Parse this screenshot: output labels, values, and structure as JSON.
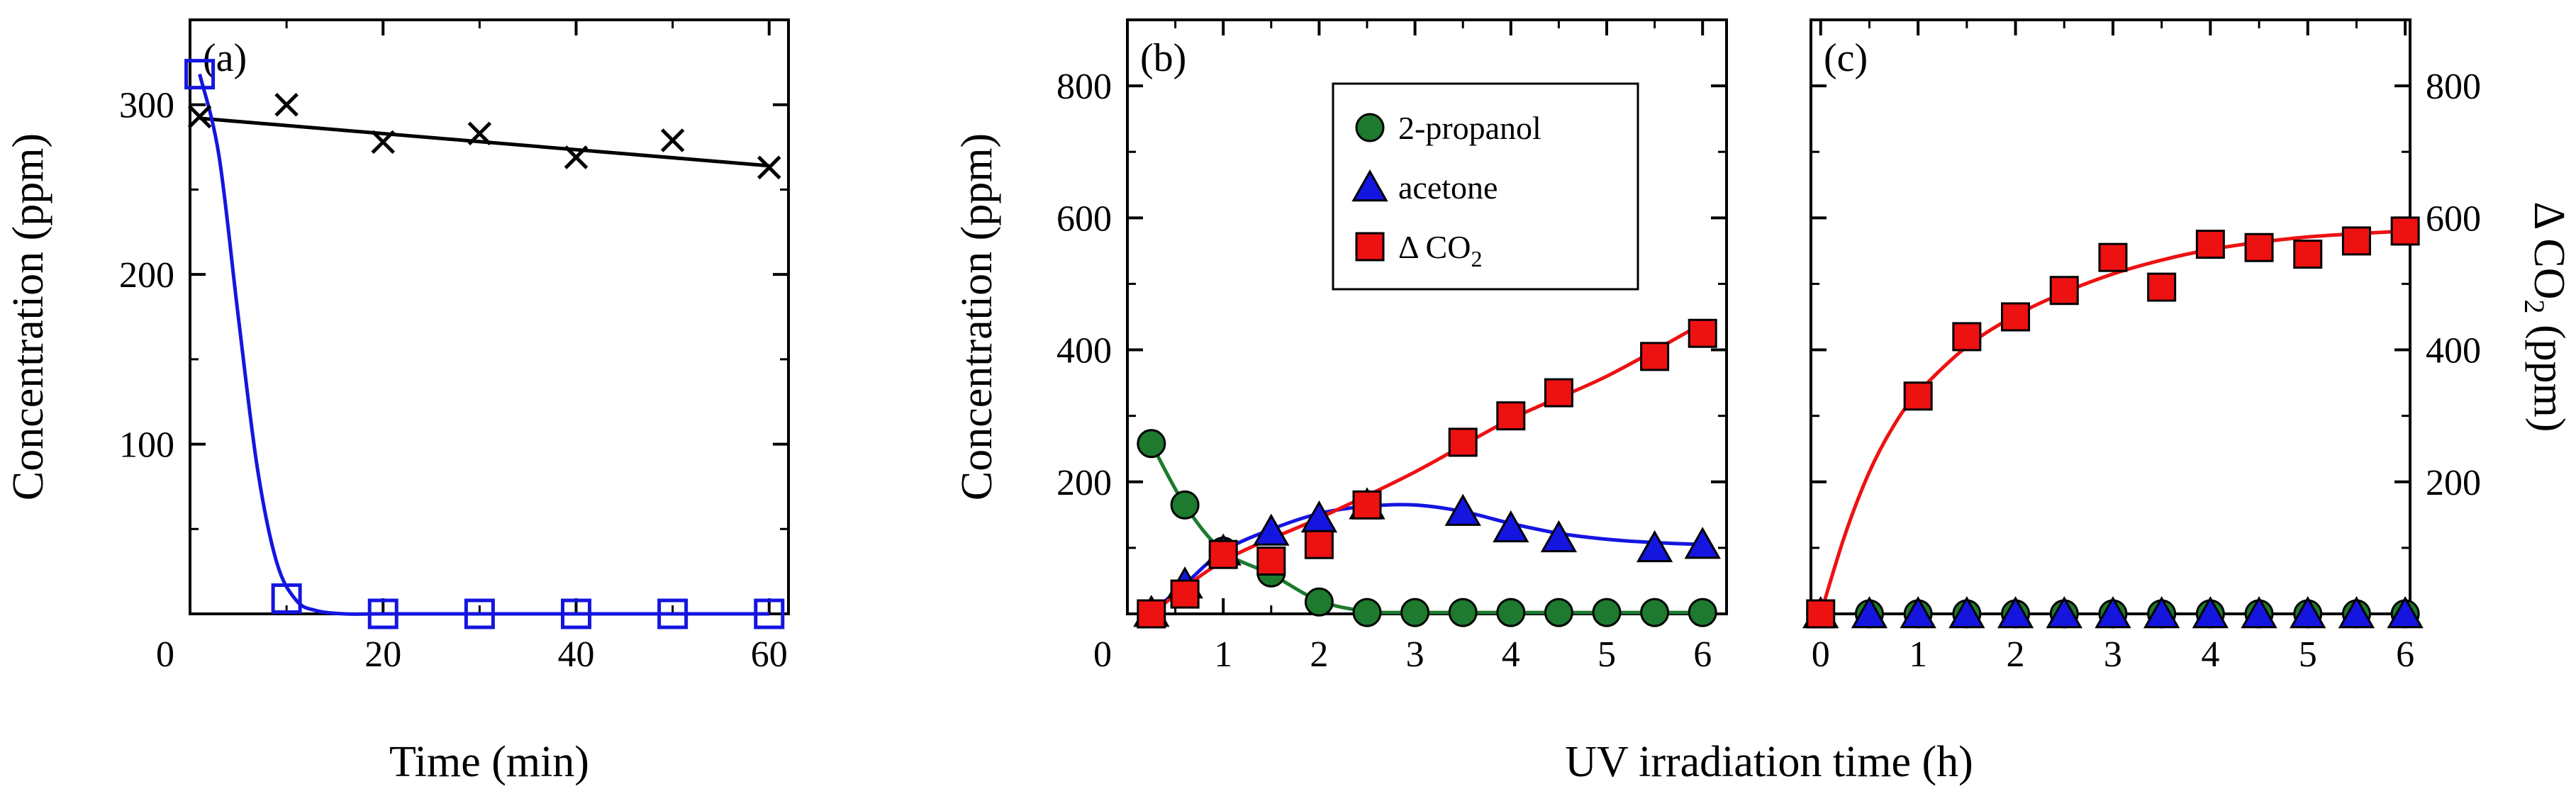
{
  "colors": {
    "axis": "#000000",
    "blue": "#1515e0",
    "red": "#ee1111",
    "green": "#1d7a2e",
    "black": "#000000"
  },
  "chart_data": [
    {
      "type": "scatter",
      "panel_label": "(a)",
      "xlabel": "Time (min)",
      "ylabel": "Concentration (ppm)",
      "xlim": [
        0,
        62
      ],
      "ylim": [
        0,
        350
      ],
      "xticks": [
        20,
        40,
        60
      ],
      "xtick_labels": [
        "20",
        "40",
        "60"
      ],
      "yticks": [
        100,
        200,
        300
      ],
      "ytick_labels": [
        "100",
        "200",
        "300"
      ],
      "origin_label": "0",
      "series": [
        {
          "name": "cross markers",
          "marker": "x",
          "color": "#000000",
          "points": [
            [
              1,
              293
            ],
            [
              10,
              300
            ],
            [
              20,
              278
            ],
            [
              30,
              283
            ],
            [
              40,
              269
            ],
            [
              50,
              279
            ],
            [
              60,
              263
            ]
          ],
          "fit": {
            "type": "linear",
            "x": [
              1,
              60
            ],
            "y": [
              292,
              264
            ]
          }
        },
        {
          "name": "open squares",
          "marker": "open-square",
          "color": "#1515e0",
          "points": [
            [
              1,
              318
            ],
            [
              10,
              9
            ],
            [
              20,
              0
            ],
            [
              30,
              0
            ],
            [
              40,
              0
            ],
            [
              50,
              0
            ],
            [
              60,
              0
            ]
          ],
          "fit": {
            "type": "curve",
            "x": [
              1,
              3,
              5,
              7,
              9,
              11,
              13,
              16,
              20,
              30,
              60
            ],
            "y": [
              318,
              270,
              175,
              85,
              30,
              8,
              2,
              0,
              0,
              0,
              0
            ]
          }
        }
      ]
    },
    {
      "type": "scatter",
      "panel_label": "(b)",
      "xlabel": "UV irradiation time (h)",
      "ylabel": "Concentration (ppm)",
      "xlim": [
        0,
        6.25
      ],
      "ylim": [
        0,
        900
      ],
      "xticks": [
        1,
        2,
        3,
        4,
        5,
        6
      ],
      "xtick_labels": [
        "1",
        "2",
        "3",
        "4",
        "5",
        "6"
      ],
      "yticks": [
        200,
        400,
        600,
        800
      ],
      "ytick_labels": [
        "200",
        "400",
        "600",
        "800"
      ],
      "origin_label": "0",
      "legend": {
        "position": "top-center",
        "entries": [
          {
            "label": "2-propanol",
            "marker": "circle",
            "color": "#1d7a2e"
          },
          {
            "label": "acetone",
            "marker": "triangle",
            "color": "#1515e0"
          },
          {
            "label": "Δ CO",
            "subscript": "2",
            "marker": "square",
            "color": "#ee1111"
          }
        ]
      },
      "series": [
        {
          "name": "2-propanol",
          "marker": "circle",
          "color": "#1d7a2e",
          "points": [
            [
              0.25,
              258
            ],
            [
              0.6,
              165
            ],
            [
              1,
              95
            ],
            [
              1.5,
              62
            ],
            [
              2,
              18
            ],
            [
              2.5,
              2
            ],
            [
              3,
              2
            ],
            [
              3.5,
              2
            ],
            [
              4,
              2
            ],
            [
              4.5,
              2
            ],
            [
              5,
              2
            ],
            [
              5.5,
              2
            ],
            [
              6,
              2
            ]
          ],
          "fit": {
            "type": "curve",
            "x": [
              0.25,
              0.6,
              1,
              1.5,
              2,
              2.5,
              3,
              4,
              5,
              6
            ],
            "y": [
              258,
              165,
              95,
              60,
              20,
              4,
              2,
              2,
              2,
              2
            ]
          }
        },
        {
          "name": "acetone",
          "marker": "triangle",
          "color": "#1515e0",
          "points": [
            [
              0.25,
              2
            ],
            [
              0.6,
              45
            ],
            [
              1,
              95
            ],
            [
              1.5,
              125
            ],
            [
              2,
              145
            ],
            [
              2.5,
              165
            ],
            [
              3.5,
              155
            ],
            [
              4,
              130
            ],
            [
              4.5,
              115
            ],
            [
              5.5,
              100
            ],
            [
              6,
              105
            ]
          ],
          "fit": {
            "type": "curve",
            "x": [
              0.25,
              0.6,
              1,
              1.5,
              2,
              2.5,
              3,
              3.5,
              4,
              4.5,
              5,
              5.5,
              6
            ],
            "y": [
              2,
              45,
              95,
              128,
              152,
              163,
              165,
              155,
              137,
              122,
              113,
              108,
              105
            ]
          }
        },
        {
          "name": "Δ CO2",
          "marker": "square",
          "color": "#ee1111",
          "points": [
            [
              0.25,
              0
            ],
            [
              0.6,
              30
            ],
            [
              1,
              90
            ],
            [
              1.5,
              80
            ],
            [
              2,
              105
            ],
            [
              2.5,
              165
            ],
            [
              3.5,
              260
            ],
            [
              4,
              300
            ],
            [
              4.5,
              335
            ],
            [
              5.5,
              390
            ],
            [
              6,
              425
            ]
          ],
          "fit": {
            "type": "curve",
            "x": [
              0.25,
              1,
              2,
              3,
              4,
              5,
              6
            ],
            "y": [
              0,
              80,
              145,
              215,
              295,
              360,
              440
            ]
          }
        }
      ]
    },
    {
      "type": "scatter",
      "panel_label": "(c)",
      "xlabel": "UV irradiation time (h)",
      "ylabel": "Δ CO",
      "ylabel_subscript": "2",
      "ylabel_suffix": " (ppm)",
      "xlim": [
        -0.1,
        6.05
      ],
      "ylim": [
        0,
        900
      ],
      "xticks": [
        0,
        1,
        2,
        3,
        4,
        5,
        6
      ],
      "xtick_labels": [
        "0",
        "1",
        "2",
        "3",
        "4",
        "5",
        "6"
      ],
      "yticks": [
        200,
        400,
        600,
        800
      ],
      "ytick_labels": [
        "200",
        "400",
        "600",
        "800"
      ],
      "series": [
        {
          "name": "2-propanol",
          "marker": "circle",
          "color": "#1d7a2e",
          "points": [
            [
              0,
              0
            ],
            [
              0.5,
              0
            ],
            [
              1,
              0
            ],
            [
              1.5,
              0
            ],
            [
              2,
              0
            ],
            [
              2.5,
              0
            ],
            [
              3,
              0
            ],
            [
              3.5,
              0
            ],
            [
              4,
              0
            ],
            [
              4.5,
              0
            ],
            [
              5,
              0
            ],
            [
              5.5,
              0
            ],
            [
              6,
              0
            ]
          ]
        },
        {
          "name": "acetone",
          "marker": "triangle",
          "color": "#1515e0",
          "points": [
            [
              0,
              0
            ],
            [
              0.5,
              0
            ],
            [
              1,
              0
            ],
            [
              1.5,
              0
            ],
            [
              2,
              0
            ],
            [
              2.5,
              0
            ],
            [
              3,
              0
            ],
            [
              3.5,
              0
            ],
            [
              4,
              0
            ],
            [
              4.5,
              0
            ],
            [
              5,
              0
            ],
            [
              5.5,
              0
            ],
            [
              6,
              0
            ]
          ]
        },
        {
          "name": "Δ CO2",
          "marker": "square",
          "color": "#ee1111",
          "points": [
            [
              0,
              0
            ],
            [
              1,
              330
            ],
            [
              1.5,
              420
            ],
            [
              2,
              450
            ],
            [
              2.5,
              490
            ],
            [
              3,
              540
            ],
            [
              3.5,
              495
            ],
            [
              4,
              560
            ],
            [
              4.5,
              555
            ],
            [
              5,
              545
            ],
            [
              5.5,
              565
            ],
            [
              6,
              580
            ]
          ],
          "fit": {
            "type": "curve",
            "x": [
              0,
              0.25,
              0.5,
              0.75,
              1,
              1.5,
              2,
              2.5,
              3,
              3.5,
              4,
              4.5,
              5,
              5.5,
              6
            ],
            "y": [
              0,
              120,
              215,
              285,
              335,
              405,
              452,
              487,
              515,
              536,
              552,
              563,
              571,
              576,
              580
            ]
          }
        }
      ]
    }
  ]
}
